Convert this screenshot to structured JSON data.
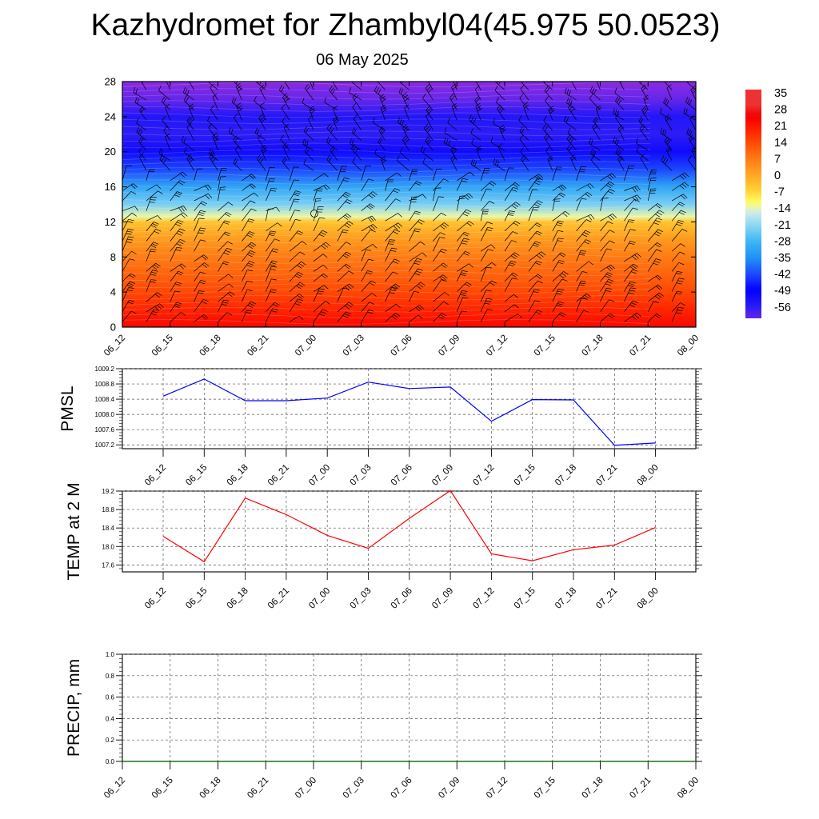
{
  "title": "Kazhydromet for Zhambyl04(45.975 50.0523)",
  "subtitle": "06 May 2025",
  "chart_data": [
    {
      "type": "heatmap",
      "name": "meteogram",
      "x_tick_labels": [
        "06_12",
        "06_15",
        "06_18",
        "06_21",
        "07_00",
        "07_03",
        "07_06",
        "07_09",
        "07_12",
        "07_15",
        "07_18",
        "07_21",
        "08_00"
      ],
      "yticks": [
        0,
        4,
        8,
        12,
        16,
        20,
        24,
        28
      ],
      "ylim": [
        0,
        28
      ],
      "level_temperature_profile": [
        {
          "level": 0,
          "temp": 28
        },
        {
          "level": 2,
          "temp": 23
        },
        {
          "level": 4,
          "temp": 18
        },
        {
          "level": 6,
          "temp": 14
        },
        {
          "level": 8,
          "temp": 10
        },
        {
          "level": 10,
          "temp": 5
        },
        {
          "level": 12,
          "temp": -2
        },
        {
          "level": 12.6,
          "temp": -12
        },
        {
          "level": 14,
          "temp": -22
        },
        {
          "level": 16,
          "temp": -31
        },
        {
          "level": 18,
          "temp": -43
        },
        {
          "level": 20,
          "temp": -53
        },
        {
          "level": 22,
          "temp": -58
        },
        {
          "level": 24,
          "temp": -56
        },
        {
          "level": 26,
          "temp": -63
        },
        {
          "level": 28,
          "temp": -66
        }
      ],
      "colorbar_labels": [
        "35",
        "28",
        "21",
        "14",
        "7",
        "0",
        "-7",
        "-14",
        "-21",
        "-28",
        "-35",
        "-42",
        "-49",
        "-56"
      ],
      "colorbar_values": [
        35,
        28,
        21,
        14,
        7,
        0,
        -7,
        -14,
        -21,
        -28,
        -35,
        -42,
        -49,
        -56
      ]
    },
    {
      "type": "line",
      "name": "PMSL",
      "ylabel": "PMSL",
      "x": [
        "06_12",
        "06_15",
        "06_18",
        "06_21",
        "07_00",
        "07_03",
        "07_06",
        "07_09",
        "07_12",
        "07_15",
        "07_18",
        "07_21",
        "08_00"
      ],
      "values": [
        1008.48,
        1008.93,
        1008.36,
        1008.36,
        1008.43,
        1008.85,
        1008.68,
        1008.72,
        1007.82,
        1008.39,
        1008.38,
        1007.19,
        1007.25
      ],
      "ylim": [
        1007.1,
        1009.2
      ],
      "yticks": [
        1007.2,
        1007.6,
        1008.0,
        1008.4,
        1008.8,
        1009.2
      ],
      "ytick_labels": [
        "1007.2",
        "1007.6",
        "1008.0",
        "1008.4",
        "1008.8",
        "1009.2"
      ],
      "color": "#0000ff",
      "grid": true
    },
    {
      "type": "line",
      "name": "TEMP at 2 M",
      "ylabel": "TEMP at 2 M",
      "x": [
        "06_12",
        "06_15",
        "06_18",
        "06_21",
        "07_00",
        "07_03",
        "07_06",
        "07_09",
        "07_12",
        "07_15",
        "07_18",
        "07_21",
        "08_00"
      ],
      "values": [
        18.22,
        17.67,
        19.05,
        18.69,
        18.24,
        17.96,
        18.61,
        19.21,
        17.84,
        17.69,
        17.93,
        18.03,
        18.41
      ],
      "ylim": [
        17.45,
        19.2
      ],
      "yticks": [
        17.6,
        18.0,
        18.4,
        18.8,
        19.2
      ],
      "ytick_labels": [
        "17.6",
        "18.0",
        "18.4",
        "18.8",
        "19.2"
      ],
      "color": "#ff0000",
      "grid": true
    },
    {
      "type": "line",
      "name": "PRECIP, mm",
      "ylabel": "PRECIP, mm",
      "x": [
        "06_12",
        "06_15",
        "06_18",
        "06_21",
        "07_00",
        "07_03",
        "07_06",
        "07_09",
        "07_12",
        "07_15",
        "07_18",
        "07_21",
        "08_00"
      ],
      "values": [
        0,
        0,
        0,
        0,
        0,
        0,
        0,
        0,
        0,
        0,
        0,
        0,
        0
      ],
      "ylim": [
        0,
        1.0
      ],
      "yticks": [
        0.0,
        0.2,
        0.4,
        0.6,
        0.8,
        1.0
      ],
      "ytick_labels": [
        "0.0",
        "0.2",
        "0.4",
        "0.6",
        "0.8",
        "1.0"
      ],
      "color": "#006400",
      "grid": true
    }
  ]
}
